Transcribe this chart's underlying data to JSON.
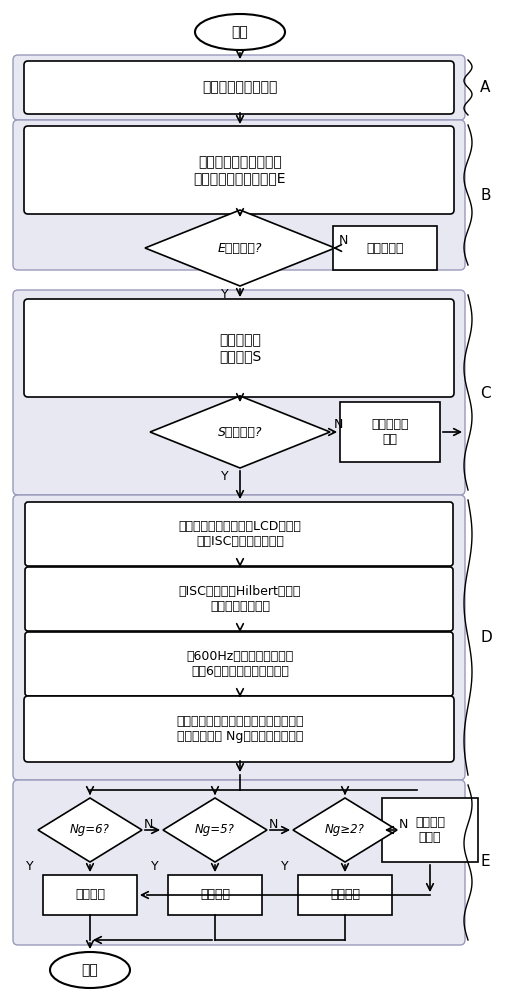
{
  "bg_color": "#ffffff",
  "nodes": {
    "start_label": "开始",
    "end_label": "结束",
    "A_label": "过电压波形数据采集",
    "B_label": "求故障后两个工频周波\n零序电压的能量贡献率E",
    "d1_label": "E大于阈值?",
    "op_label": "操作过电压",
    "C_label": "求三相电压\n奇异谱熵S",
    "d2_label": "S大于阈值?",
    "metal_label": "单相金属性\n接地",
    "D1_label": "对相应的零序电压进行LCD分解，\n获取ISC分量和剩余分量",
    "D2_label": "对ISC分量进行Hilbert变换，\n获取瞬时频率矩阵",
    "D3_label": "以600Hz作为总频段范围，\n划分6个频带，进行带通滤波",
    "D4_label": "计算各频带能量值，选取能量最大的对\n应的频带编号 Ng作为重心频带输出",
    "e1_label": "Ng=6?",
    "e2_label": "Ng=5?",
    "e3_label": "Ng≥2?",
    "r1_label": "高频谐振",
    "r2_label": "基频谐振",
    "r3_label": "分频谐振",
    "r4_label": "间歇性弧\n光接地"
  },
  "section_labels": [
    "A",
    "B",
    "C",
    "D",
    "E"
  ]
}
